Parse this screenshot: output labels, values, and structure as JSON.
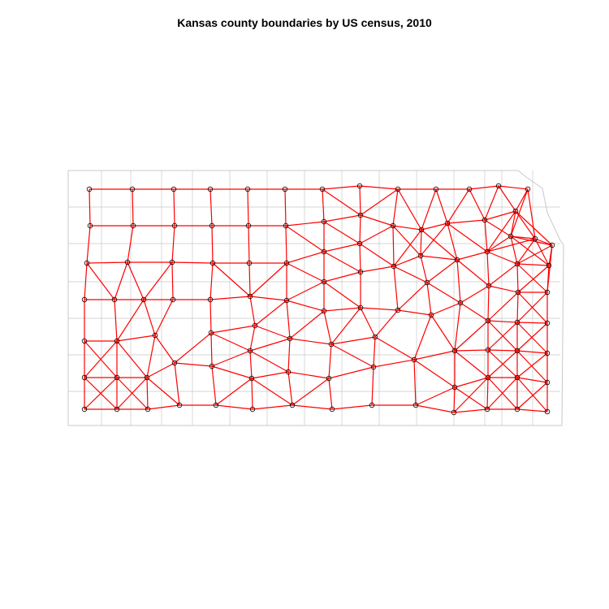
{
  "title": "Kansas county boundaries by US census, 2010",
  "colors": {
    "background": "#ffffff",
    "county_boundary": "#c8c8c8",
    "neighbor_edge": "#ff0000",
    "centroid_point": "#000000"
  },
  "map": {
    "kind": "choropleth-free boundary map with neighbor graph",
    "region": "Kansas",
    "layers": [
      "county boundaries",
      "county centroids",
      "neighbor links"
    ]
  }
}
